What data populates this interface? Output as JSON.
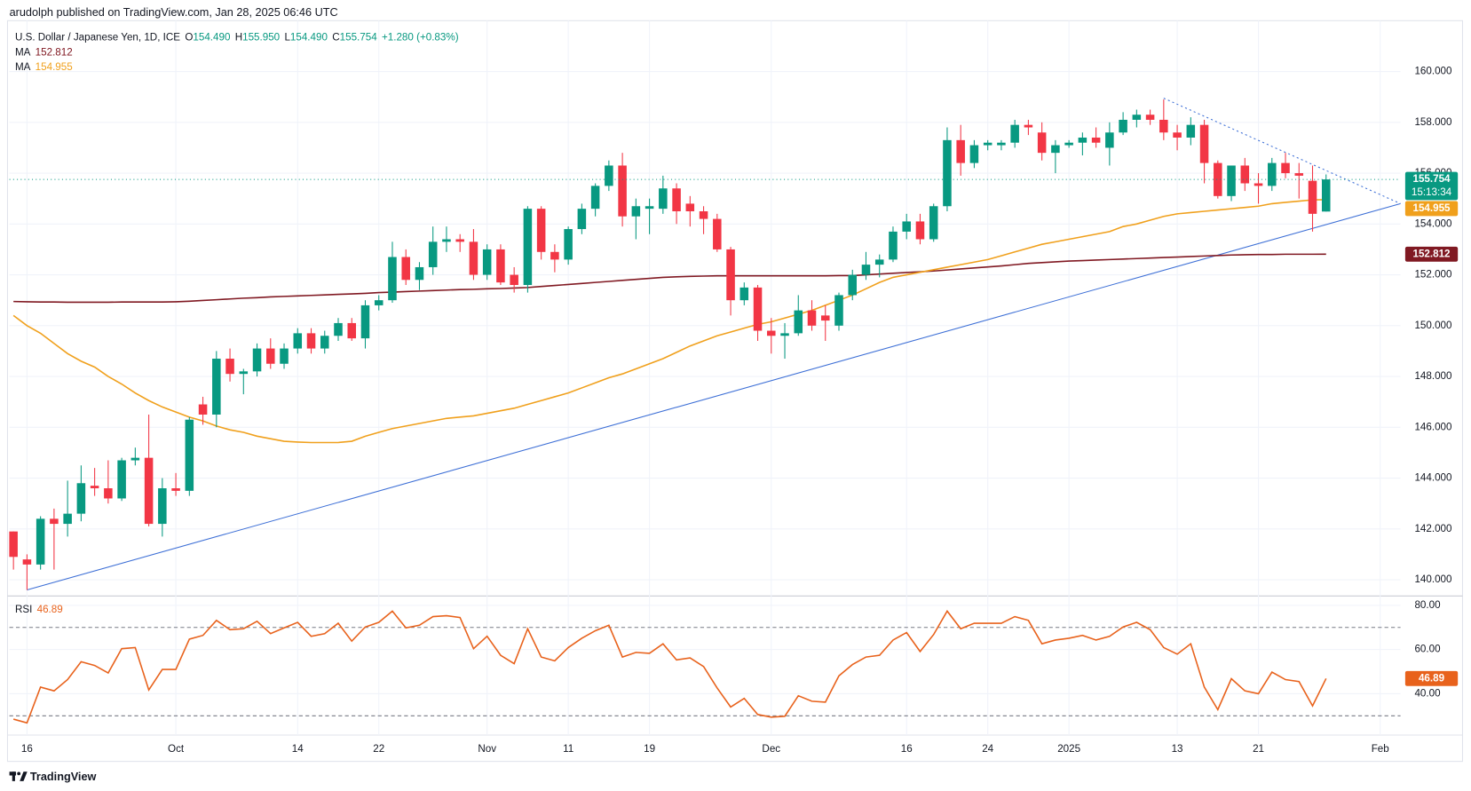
{
  "header": {
    "publisher": "arudolph published on TradingView.com, Jan 28, 2025 06:46 UTC",
    "brand": "TradingView"
  },
  "chart_data": [
    {
      "type": "candlestick",
      "title": "U.S. Dollar / Japanese Yen, 1D, ICE",
      "ohlc_legend": [
        {
          "key": "O",
          "value": "154.490"
        },
        {
          "key": "H",
          "value": "155.950"
        },
        {
          "key": "L",
          "value": "154.490"
        },
        {
          "key": "C",
          "value": "155.754"
        }
      ],
      "change": "+1.280 (+0.83%)",
      "up_color": "#089981",
      "down_color": "#f23645",
      "candles": [
        [
          141.9,
          141.9,
          140.4,
          140.9
        ],
        [
          140.8,
          141.0,
          139.6,
          140.6
        ],
        [
          140.6,
          142.5,
          140.4,
          142.4
        ],
        [
          142.4,
          142.8,
          140.4,
          142.2
        ],
        [
          142.2,
          143.9,
          141.7,
          142.6
        ],
        [
          142.6,
          144.5,
          142.3,
          143.8
        ],
        [
          143.7,
          144.4,
          143.3,
          143.6
        ],
        [
          143.6,
          144.7,
          143.0,
          143.2
        ],
        [
          143.2,
          144.8,
          143.1,
          144.7
        ],
        [
          144.7,
          145.2,
          144.5,
          144.8
        ],
        [
          144.8,
          146.5,
          142.1,
          142.2
        ],
        [
          142.2,
          144.0,
          141.7,
          143.6
        ],
        [
          143.6,
          144.2,
          143.3,
          143.5
        ],
        [
          143.5,
          146.4,
          143.3,
          146.3
        ],
        [
          146.9,
          147.2,
          146.1,
          146.5
        ],
        [
          146.5,
          149.0,
          146.0,
          148.7
        ],
        [
          148.7,
          149.1,
          147.8,
          148.1
        ],
        [
          148.1,
          148.3,
          147.3,
          148.2
        ],
        [
          148.2,
          149.3,
          148.0,
          149.1
        ],
        [
          149.1,
          149.5,
          148.3,
          148.5
        ],
        [
          148.5,
          149.3,
          148.3,
          149.1
        ],
        [
          149.1,
          149.9,
          148.9,
          149.7
        ],
        [
          149.7,
          149.9,
          148.9,
          149.1
        ],
        [
          149.1,
          149.8,
          148.9,
          149.6
        ],
        [
          149.6,
          150.3,
          149.4,
          150.1
        ],
        [
          150.1,
          150.3,
          149.4,
          149.5
        ],
        [
          149.5,
          151.0,
          149.1,
          150.8
        ],
        [
          150.8,
          151.2,
          150.6,
          151.0
        ],
        [
          151.0,
          153.3,
          150.9,
          152.7
        ],
        [
          152.7,
          153.0,
          151.6,
          151.8
        ],
        [
          151.8,
          152.5,
          151.4,
          152.3
        ],
        [
          152.3,
          153.9,
          152.0,
          153.3
        ],
        [
          153.3,
          153.9,
          152.9,
          153.4
        ],
        [
          153.4,
          153.6,
          152.9,
          153.3
        ],
        [
          153.3,
          153.8,
          151.8,
          152.0
        ],
        [
          152.0,
          153.2,
          151.8,
          153.0
        ],
        [
          153.0,
          153.2,
          151.6,
          151.7
        ],
        [
          152.0,
          152.3,
          151.3,
          151.6
        ],
        [
          151.6,
          154.7,
          151.3,
          154.6
        ],
        [
          154.6,
          154.7,
          152.6,
          152.9
        ],
        [
          152.9,
          153.2,
          152.1,
          152.6
        ],
        [
          152.6,
          153.9,
          152.4,
          153.8
        ],
        [
          153.8,
          154.8,
          153.6,
          154.6
        ],
        [
          154.6,
          155.6,
          154.3,
          155.5
        ],
        [
          155.5,
          156.5,
          155.3,
          156.3
        ],
        [
          156.3,
          156.8,
          153.9,
          154.3
        ],
        [
          154.3,
          155.0,
          153.4,
          154.7
        ],
        [
          154.6,
          155.0,
          153.6,
          154.7
        ],
        [
          154.6,
          155.9,
          154.4,
          155.4
        ],
        [
          155.4,
          155.6,
          154.0,
          154.5
        ],
        [
          154.8,
          155.1,
          153.9,
          154.5
        ],
        [
          154.5,
          154.7,
          153.6,
          154.2
        ],
        [
          154.2,
          154.4,
          152.9,
          153.0
        ],
        [
          153.0,
          153.1,
          150.4,
          151.0
        ],
        [
          151.0,
          151.7,
          150.8,
          151.5
        ],
        [
          151.5,
          151.6,
          149.4,
          149.8
        ],
        [
          149.8,
          150.3,
          148.9,
          149.6
        ],
        [
          149.6,
          150.1,
          148.7,
          149.7
        ],
        [
          149.7,
          151.2,
          149.6,
          150.6
        ],
        [
          150.6,
          151.0,
          149.8,
          150.0
        ],
        [
          150.4,
          150.8,
          149.4,
          150.2
        ],
        [
          150.0,
          151.3,
          149.8,
          151.2
        ],
        [
          151.2,
          152.2,
          151.0,
          152.0
        ],
        [
          152.0,
          152.9,
          151.8,
          152.4
        ],
        [
          152.4,
          152.8,
          151.9,
          152.6
        ],
        [
          152.6,
          153.9,
          152.5,
          153.7
        ],
        [
          153.7,
          154.4,
          153.4,
          154.1
        ],
        [
          154.1,
          154.4,
          153.2,
          153.4
        ],
        [
          153.4,
          154.8,
          153.3,
          154.7
        ],
        [
          154.7,
          157.8,
          154.5,
          157.3
        ],
        [
          157.3,
          157.9,
          155.9,
          156.4
        ],
        [
          156.4,
          157.3,
          156.2,
          157.1
        ],
        [
          157.1,
          157.3,
          156.9,
          157.2
        ],
        [
          157.1,
          157.3,
          156.9,
          157.2
        ],
        [
          157.2,
          158.1,
          157.0,
          157.9
        ],
        [
          157.9,
          158.1,
          157.5,
          157.8
        ],
        [
          157.6,
          158.0,
          156.5,
          156.8
        ],
        [
          156.8,
          157.3,
          156.0,
          157.1
        ],
        [
          157.1,
          157.3,
          157.0,
          157.2
        ],
        [
          157.2,
          157.6,
          156.7,
          157.4
        ],
        [
          157.4,
          157.8,
          157.0,
          157.2
        ],
        [
          157.0,
          158.0,
          156.3,
          157.6
        ],
        [
          157.6,
          158.4,
          157.5,
          158.1
        ],
        [
          158.1,
          158.5,
          157.8,
          158.3
        ],
        [
          158.3,
          158.5,
          157.9,
          158.1
        ],
        [
          158.1,
          158.9,
          157.3,
          157.6
        ],
        [
          157.6,
          157.9,
          156.9,
          157.4
        ],
        [
          157.4,
          158.2,
          157.1,
          157.9
        ],
        [
          157.9,
          158.1,
          155.6,
          156.4
        ],
        [
          156.4,
          156.5,
          155.0,
          155.1
        ],
        [
          155.1,
          156.3,
          154.9,
          156.3
        ],
        [
          156.3,
          156.6,
          155.3,
          155.6
        ],
        [
          155.6,
          156.0,
          154.8,
          155.5
        ],
        [
          155.5,
          156.6,
          155.3,
          156.4
        ],
        [
          156.4,
          156.8,
          155.8,
          156.0
        ],
        [
          156.0,
          156.4,
          155.0,
          155.9
        ],
        [
          155.7,
          156.3,
          153.7,
          154.4
        ],
        [
          154.49,
          155.95,
          154.49,
          155.754
        ]
      ],
      "series": [
        {
          "name": "MA",
          "color": "#801922",
          "last_label": "152.812",
          "values": [
            150.95,
            150.94,
            150.93,
            150.93,
            150.92,
            150.92,
            150.92,
            150.92,
            150.93,
            150.93,
            150.93,
            150.93,
            150.94,
            150.96,
            150.99,
            151.02,
            151.05,
            151.08,
            151.1,
            151.13,
            151.15,
            151.17,
            151.19,
            151.21,
            151.23,
            151.25,
            151.27,
            151.3,
            151.32,
            151.34,
            151.36,
            151.38,
            151.4,
            151.42,
            151.43,
            151.45,
            151.46,
            151.48,
            151.5,
            151.54,
            151.58,
            151.62,
            151.66,
            151.7,
            151.74,
            151.78,
            151.82,
            151.86,
            151.9,
            151.92,
            151.94,
            151.95,
            151.96,
            151.96,
            151.96,
            151.96,
            151.96,
            151.96,
            151.96,
            151.96,
            151.96,
            151.97,
            151.97,
            152.0,
            152.03,
            152.06,
            152.09,
            152.12,
            152.15,
            152.19,
            152.23,
            152.27,
            152.31,
            152.35,
            152.4,
            152.45,
            152.48,
            152.51,
            152.54,
            152.56,
            152.58,
            152.6,
            152.62,
            152.64,
            152.66,
            152.68,
            152.7,
            152.72,
            152.74,
            152.76,
            152.78,
            152.79,
            152.8,
            152.8,
            152.81,
            152.81,
            152.81,
            152.812
          ]
        },
        {
          "name": "MA",
          "color": "#f0a01c",
          "last_label": "154.955",
          "values": [
            150.4,
            150.0,
            149.7,
            149.3,
            148.9,
            148.6,
            148.37,
            148.0,
            147.7,
            147.35,
            147.05,
            146.8,
            146.6,
            146.4,
            146.25,
            146.05,
            145.9,
            145.8,
            145.65,
            145.55,
            145.45,
            145.42,
            145.4,
            145.4,
            145.4,
            145.45,
            145.65,
            145.8,
            145.95,
            146.05,
            146.15,
            146.25,
            146.35,
            146.4,
            146.45,
            146.55,
            146.65,
            146.75,
            146.9,
            147.05,
            147.2,
            147.35,
            147.55,
            147.75,
            147.95,
            148.1,
            148.3,
            148.5,
            148.7,
            148.95,
            149.2,
            149.4,
            149.6,
            149.75,
            149.9,
            150.05,
            150.15,
            150.3,
            150.45,
            150.6,
            150.8,
            151.0,
            151.2,
            151.45,
            151.7,
            151.9,
            152.0,
            152.1,
            152.2,
            152.3,
            152.4,
            152.5,
            152.6,
            152.75,
            152.9,
            153.05,
            153.2,
            153.3,
            153.4,
            153.5,
            153.6,
            153.7,
            153.9,
            154.0,
            154.15,
            154.3,
            154.4,
            154.45,
            154.5,
            154.55,
            154.6,
            154.65,
            154.7,
            154.8,
            154.85,
            154.9,
            154.95,
            154.955
          ]
        }
      ],
      "last_price": {
        "value": 155.754,
        "label": "155.754",
        "countdown": "15:13:34",
        "color": "#089981"
      },
      "trendlines": [
        {
          "color": "#3d6fd6",
          "style": "solid",
          "from": [
            1,
            139.6
          ],
          "to": [
            102.5,
            154.8
          ]
        },
        {
          "color": "#3d6fd6",
          "style": "dotted",
          "from": [
            85,
            158.95
          ],
          "to": [
            102.5,
            154.8
          ]
        }
      ],
      "xlim": [
        -0.3,
        102.5
      ],
      "ylim": [
        139.4,
        162
      ],
      "yticks": [
        {
          "value": 140,
          "label": "140.000"
        },
        {
          "value": 142,
          "label": "142.000"
        },
        {
          "value": 144,
          "label": "144.000"
        },
        {
          "value": 146,
          "label": "146.000"
        },
        {
          "value": 148,
          "label": "148.000"
        },
        {
          "value": 150,
          "label": "150.000"
        },
        {
          "value": 152,
          "label": "152.000"
        },
        {
          "value": 154,
          "label": "154.000"
        },
        {
          "value": 156,
          "label": "156.000"
        },
        {
          "value": 158,
          "label": "158.000"
        },
        {
          "value": 160,
          "label": "160.000"
        }
      ],
      "xticks": [
        {
          "value": 1,
          "label": "16"
        },
        {
          "value": 12,
          "label": "Oct"
        },
        {
          "value": 21,
          "label": "14"
        },
        {
          "value": 27,
          "label": "22"
        },
        {
          "value": 35,
          "label": "Nov"
        },
        {
          "value": 41,
          "label": "11"
        },
        {
          "value": 47,
          "label": "19"
        },
        {
          "value": 56,
          "label": "Dec"
        },
        {
          "value": 66,
          "label": "16"
        },
        {
          "value": 72,
          "label": "24"
        },
        {
          "value": 78,
          "label": "2025"
        },
        {
          "value": 86,
          "label": "13"
        },
        {
          "value": 92,
          "label": "21"
        },
        {
          "value": 101,
          "label": "Feb"
        }
      ],
      "grid": true
    },
    {
      "type": "line",
      "series": [
        {
          "name": "RSI",
          "color": "#e8621c",
          "last_label": "46.89",
          "values": [
            28.5,
            26.8,
            43,
            41.3,
            46.4,
            54.5,
            52.8,
            49.4,
            60.4,
            60.9,
            41.7,
            51,
            51,
            64.7,
            66.4,
            73.2,
            69,
            69.4,
            72.8,
            67.2,
            69.8,
            72.3,
            66,
            67.2,
            71.9,
            63.8,
            70.2,
            72.3,
            77.4,
            69.8,
            71,
            74.9,
            75.3,
            74.5,
            60.4,
            66,
            57.4,
            53.6,
            69.4,
            56.6,
            54.9,
            60.9,
            65.1,
            68.5,
            71,
            56.6,
            58.7,
            58.3,
            62.6,
            55.3,
            56.2,
            52.3,
            42.6,
            34,
            37.9,
            30.6,
            29.4,
            29.8,
            39.1,
            36.6,
            36.2,
            48.1,
            53.2,
            56.6,
            57.4,
            64.3,
            67.7,
            59.1,
            66.8,
            77.4,
            69.4,
            71.9,
            71.9,
            71.9,
            74.9,
            73.2,
            62.6,
            64.3,
            65.1,
            66.4,
            64.3,
            66,
            70.2,
            72.3,
            69,
            60.9,
            57.9,
            62.6,
            43,
            32.8,
            46.8,
            41.3,
            40,
            49.8,
            46.4,
            45.5,
            34.5,
            46.89
          ]
        }
      ],
      "xlim": [
        -0.3,
        102.5
      ],
      "ylim": [
        21.3,
        83.4
      ],
      "yticks": [
        {
          "value": 40,
          "label": "40.00"
        },
        {
          "value": 60,
          "label": "60.00"
        },
        {
          "value": 80,
          "label": "80.00"
        }
      ],
      "bands": [
        30,
        70
      ],
      "grid": true
    }
  ]
}
